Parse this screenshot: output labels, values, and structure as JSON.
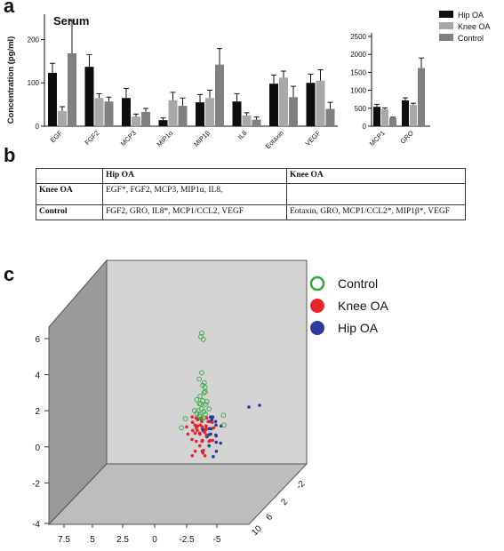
{
  "panel_a": {
    "letter": "a",
    "title": "Serum",
    "ylabel": "Concentration (pg/ml)",
    "legend": [
      {
        "label": "Hip OA",
        "color": "#0d0d0d"
      },
      {
        "label": "Knee OA",
        "color": "#a8a8a8"
      },
      {
        "label": "Control",
        "color": "#808080"
      }
    ]
  },
  "panel_b": {
    "letter": "b",
    "header": [
      "",
      "Hip OA",
      "Knee OA"
    ],
    "rows": [
      {
        "label": "Knee OA",
        "hip": "EGF*, FGF2, MCP3, MIP1α, IL8,",
        "knee": ""
      },
      {
        "label": "Control",
        "hip": "FGF2, GRO, IL8*, MCP1/CCL2, VEGF",
        "knee": "Eotaxin, GRO, MCP1/CCL2*, MIP1β*, VEGF"
      }
    ]
  },
  "panel_c": {
    "letter": "c",
    "legend": [
      {
        "label": "Control",
        "color": "#2ea83a",
        "marker": "open-circle"
      },
      {
        "label": "Knee OA",
        "color": "#e8232a",
        "marker": "filled-circle"
      },
      {
        "label": "Hip OA",
        "color": "#2b3a9a",
        "marker": "filled-circle"
      }
    ]
  },
  "chart_data": [
    {
      "type": "bar",
      "title": "Serum",
      "ylabel": "Concentration (pg/ml)",
      "ylim": [
        0,
        250
      ],
      "yticks": [
        0,
        100,
        200
      ],
      "categories": [
        "EGF",
        "FGF2",
        "MCP3",
        "MIP1α",
        "MIP1β",
        "IL8",
        "Eotaxin",
        "VEGF"
      ],
      "series": [
        {
          "name": "Hip OA",
          "values": [
            123,
            137,
            65,
            14,
            55,
            57,
            98,
            100
          ],
          "errors": [
            22,
            28,
            22,
            5,
            18,
            18,
            20,
            20
          ]
        },
        {
          "name": "Knee OA",
          "values": [
            35,
            65,
            22,
            60,
            65,
            25,
            112,
            105
          ],
          "errors": [
            10,
            10,
            6,
            18,
            18,
            6,
            15,
            25
          ]
        },
        {
          "name": "Control",
          "values": [
            168,
            57,
            33,
            47,
            142,
            15,
            67,
            40
          ],
          "errors": [
            75,
            10,
            8,
            18,
            37,
            6,
            25,
            15
          ]
        }
      ],
      "legend_position": "top-right"
    },
    {
      "type": "bar",
      "ylim": [
        0,
        2500
      ],
      "yticks": [
        0,
        500,
        1000,
        1500,
        2000,
        2500
      ],
      "categories": [
        "MCP1",
        "GRO"
      ],
      "series": [
        {
          "name": "Hip OA",
          "values": [
            540,
            720
          ],
          "errors": [
            70,
            70
          ]
        },
        {
          "name": "Knee OA",
          "values": [
            470,
            590
          ],
          "errors": [
            40,
            50
          ]
        },
        {
          "name": "Control",
          "values": [
            230,
            1620
          ],
          "errors": [
            20,
            280
          ]
        }
      ]
    },
    {
      "type": "scatter",
      "axes": {
        "vertical_ticks": [
          -4,
          -2,
          0,
          2,
          4,
          6
        ],
        "x_ticks": [
          7.5,
          5,
          2.5,
          0,
          -2.5,
          -5
        ],
        "depth_ticks": [
          10,
          6,
          2,
          -2
        ]
      },
      "series": [
        {
          "name": "Control",
          "points": [
            [
              0.5,
              0.5,
              6.7
            ],
            [
              0.6,
              0.5,
              6.5
            ],
            [
              0.5,
              0.6,
              6.3
            ],
            [
              0.4,
              0.5,
              3.8
            ],
            [
              0.6,
              0.4,
              4.2
            ],
            [
              0.3,
              0.6,
              3.4
            ],
            [
              0.7,
              0.5,
              3.2
            ],
            [
              0.5,
              0.7,
              3.6
            ],
            [
              0.4,
              0.3,
              2.9
            ],
            [
              0.8,
              0.6,
              2.7
            ],
            [
              0.2,
              0.4,
              3.0
            ],
            [
              0.6,
              0.8,
              2.6
            ],
            [
              0.5,
              0.5,
              2.5
            ],
            [
              0.3,
              0.7,
              2.8
            ],
            [
              0.7,
              0.3,
              3.1
            ],
            [
              0.9,
              0.5,
              2.4
            ],
            [
              0.1,
              0.5,
              2.2
            ],
            [
              0.4,
              0.9,
              2.3
            ],
            [
              0.6,
              0.1,
              2.6
            ],
            [
              2.6,
              0.4,
              1.5
            ],
            [
              -2.0,
              0.5,
              1.6
            ],
            [
              -1.4,
              0.8,
              2.0
            ],
            [
              1.8,
              0.2,
              2.1
            ],
            [
              0.5,
              0.4,
              2.1
            ],
            [
              0.2,
              0.2,
              2.3
            ],
            [
              0.8,
              0.8,
              2.2
            ],
            [
              0.3,
              0.5,
              2.0
            ],
            [
              0.7,
              0.6,
              1.9
            ],
            [
              0.5,
              0.2,
              2.4
            ],
            [
              0.4,
              0.6,
              3.9
            ],
            [
              0.5,
              0.5,
              4.5
            ],
            [
              0.6,
              0.7,
              3.3
            ]
          ]
        },
        {
          "name": "Knee OA",
          "points": [
            [
              0.5,
              0.5,
              1.8
            ],
            [
              0.8,
              0.4,
              1.6
            ],
            [
              0.2,
              0.6,
              1.5
            ],
            [
              1.0,
              0.5,
              1.3
            ],
            [
              0.6,
              0.8,
              1.2
            ],
            [
              0.3,
              0.3,
              1.7
            ],
            [
              1.3,
              0.6,
              1.4
            ],
            [
              -0.2,
              0.4,
              1.1
            ],
            [
              0.9,
              0.9,
              1.0
            ],
            [
              0.4,
              0.1,
              0.9
            ],
            [
              1.6,
              0.5,
              0.8
            ],
            [
              0.1,
              0.8,
              0.6
            ],
            [
              0.7,
              0.2,
              0.3
            ],
            [
              1.2,
              0.3,
              0.0
            ],
            [
              0.5,
              0.7,
              -0.2
            ],
            [
              0.9,
              0.6,
              0.4
            ],
            [
              0.3,
              0.5,
              0.2
            ],
            [
              1.5,
              0.7,
              1.9
            ],
            [
              -0.5,
              0.6,
              1.7
            ],
            [
              0.6,
              0.3,
              2.0
            ],
            [
              1.1,
              0.8,
              1.8
            ],
            [
              0.2,
              0.2,
              1.3
            ],
            [
              0.8,
              0.1,
              1.5
            ],
            [
              2.2,
              0.5,
              1.5
            ],
            [
              -0.9,
              0.4,
              0.8
            ],
            [
              1.8,
              0.8,
              1.0
            ],
            [
              0.4,
              0.9,
              0.5
            ],
            [
              1.0,
              0.2,
              1.9
            ],
            [
              0.0,
              0.5,
              1.4
            ],
            [
              0.7,
              0.5,
              1.1
            ],
            [
              1.4,
              0.4,
              2.1
            ],
            [
              0.3,
              0.7,
              1.9
            ],
            [
              0.9,
              0.3,
              1.7
            ],
            [
              0.5,
              0.9,
              1.6
            ],
            [
              1.7,
              0.3,
              1.2
            ],
            [
              -0.3,
              0.8,
              1.3
            ],
            [
              0.6,
              0.6,
              0.7
            ],
            [
              1.2,
              0.9,
              0.5
            ],
            [
              0.2,
              0.4,
              0.1
            ],
            [
              0.8,
              0.7,
              1.4
            ]
          ]
        },
        {
          "name": "Hip OA",
          "points": [
            [
              -6.0,
              0.5,
              2.7
            ],
            [
              -4.8,
              0.5,
              2.6
            ],
            [
              -0.4,
              0.5,
              1.8
            ],
            [
              -0.7,
              0.3,
              1.5
            ],
            [
              -0.2,
              0.7,
              1.3
            ],
            [
              -0.9,
              0.6,
              1.0
            ],
            [
              -0.5,
              0.4,
              0.5
            ],
            [
              -0.1,
              0.2,
              0.3
            ],
            [
              -0.6,
              0.8,
              0.0
            ],
            [
              -1.1,
              0.5,
              1.6
            ],
            [
              -0.3,
              0.6,
              2.0
            ],
            [
              -0.8,
              0.2,
              1.2
            ],
            [
              -0.4,
              0.9,
              0.8
            ],
            [
              0.0,
              0.3,
              1.4
            ],
            [
              -1.3,
              0.4,
              0.7
            ],
            [
              -0.6,
              0.6,
              -0.2
            ],
            [
              -0.2,
              0.8,
              1.9
            ],
            [
              -0.7,
              0.7,
              1.7
            ],
            [
              -1.0,
              0.3,
              2.0
            ],
            [
              -0.5,
              0.5,
              1.1
            ],
            [
              0.1,
              0.6,
              0.9
            ],
            [
              -0.9,
              0.9,
              0.4
            ],
            [
              -1.5,
              0.6,
              1.5
            ],
            [
              -0.3,
              0.1,
              1.6
            ]
          ]
        }
      ],
      "legend_position": "top-right"
    }
  ]
}
